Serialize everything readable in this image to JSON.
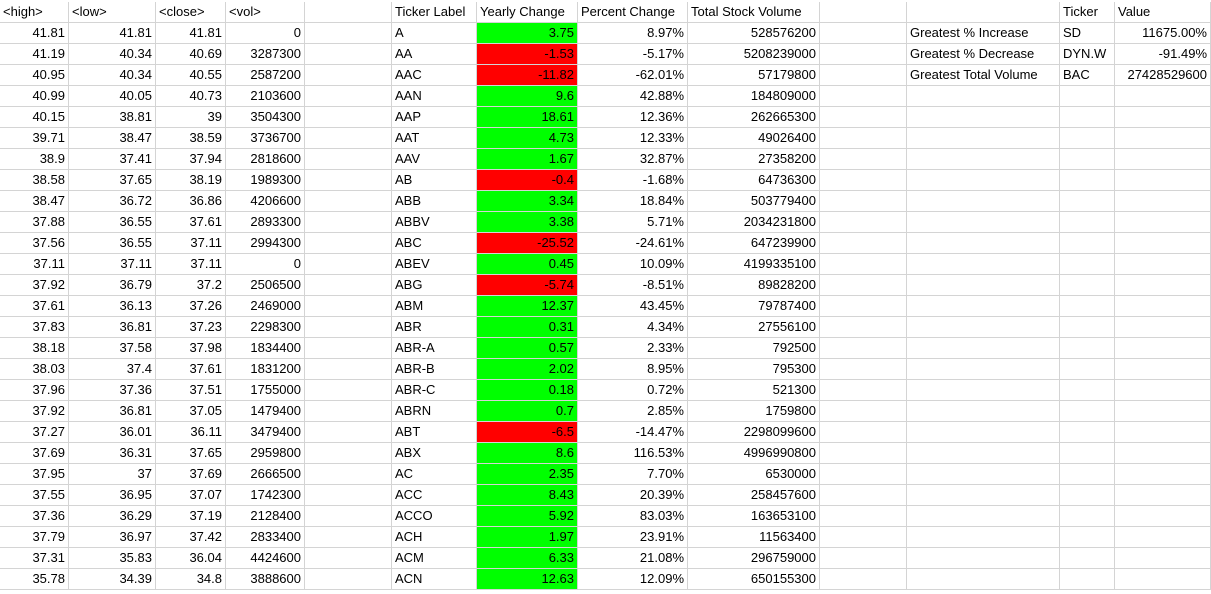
{
  "sheet": {
    "headers": {
      "high": "<high>",
      "low": "<low>",
      "close": "<close>",
      "vol": "<vol>",
      "ticker_label": "Ticker Label",
      "yearly_change": "Yearly Change",
      "percent_change": "Percent Change",
      "total_stock_volume": "Total Stock Volume",
      "summary_ticker": "Ticker",
      "summary_value": "Value"
    },
    "rows": [
      {
        "high": "41.81",
        "low": "41.81",
        "close": "41.81",
        "vol": "0",
        "ticker": "A",
        "yearly_change": "3.75",
        "percent_change": "8.97%",
        "total_volume": "528576200",
        "change_color": "#00ff00"
      },
      {
        "high": "41.19",
        "low": "40.34",
        "close": "40.69",
        "vol": "3287300",
        "ticker": "AA",
        "yearly_change": "-1.53",
        "percent_change": "-5.17%",
        "total_volume": "5208239000",
        "change_color": "#ff0000"
      },
      {
        "high": "40.95",
        "low": "40.34",
        "close": "40.55",
        "vol": "2587200",
        "ticker": "AAC",
        "yearly_change": "-11.82",
        "percent_change": "-62.01%",
        "total_volume": "57179800",
        "change_color": "#ff0000"
      },
      {
        "high": "40.99",
        "low": "40.05",
        "close": "40.73",
        "vol": "2103600",
        "ticker": "AAN",
        "yearly_change": "9.6",
        "percent_change": "42.88%",
        "total_volume": "184809000",
        "change_color": "#00ff00"
      },
      {
        "high": "40.15",
        "low": "38.81",
        "close": "39",
        "vol": "3504300",
        "ticker": "AAP",
        "yearly_change": "18.61",
        "percent_change": "12.36%",
        "total_volume": "262665300",
        "change_color": "#00ff00"
      },
      {
        "high": "39.71",
        "low": "38.47",
        "close": "38.59",
        "vol": "3736700",
        "ticker": "AAT",
        "yearly_change": "4.73",
        "percent_change": "12.33%",
        "total_volume": "49026400",
        "change_color": "#00ff00"
      },
      {
        "high": "38.9",
        "low": "37.41",
        "close": "37.94",
        "vol": "2818600",
        "ticker": "AAV",
        "yearly_change": "1.67",
        "percent_change": "32.87%",
        "total_volume": "27358200",
        "change_color": "#00ff00"
      },
      {
        "high": "38.58",
        "low": "37.65",
        "close": "38.19",
        "vol": "1989300",
        "ticker": "AB",
        "yearly_change": "-0.4",
        "percent_change": "-1.68%",
        "total_volume": "64736300",
        "change_color": "#ff0000"
      },
      {
        "high": "38.47",
        "low": "36.72",
        "close": "36.86",
        "vol": "4206600",
        "ticker": "ABB",
        "yearly_change": "3.34",
        "percent_change": "18.84%",
        "total_volume": "503779400",
        "change_color": "#00ff00"
      },
      {
        "high": "37.88",
        "low": "36.55",
        "close": "37.61",
        "vol": "2893300",
        "ticker": "ABBV",
        "yearly_change": "3.38",
        "percent_change": "5.71%",
        "total_volume": "2034231800",
        "change_color": "#00ff00"
      },
      {
        "high": "37.56",
        "low": "36.55",
        "close": "37.11",
        "vol": "2994300",
        "ticker": "ABC",
        "yearly_change": "-25.52",
        "percent_change": "-24.61%",
        "total_volume": "647239900",
        "change_color": "#ff0000"
      },
      {
        "high": "37.11",
        "low": "37.11",
        "close": "37.11",
        "vol": "0",
        "ticker": "ABEV",
        "yearly_change": "0.45",
        "percent_change": "10.09%",
        "total_volume": "4199335100",
        "change_color": "#00ff00"
      },
      {
        "high": "37.92",
        "low": "36.79",
        "close": "37.2",
        "vol": "2506500",
        "ticker": "ABG",
        "yearly_change": "-5.74",
        "percent_change": "-8.51%",
        "total_volume": "89828200",
        "change_color": "#ff0000"
      },
      {
        "high": "37.61",
        "low": "36.13",
        "close": "37.26",
        "vol": "2469000",
        "ticker": "ABM",
        "yearly_change": "12.37",
        "percent_change": "43.45%",
        "total_volume": "79787400",
        "change_color": "#00ff00"
      },
      {
        "high": "37.83",
        "low": "36.81",
        "close": "37.23",
        "vol": "2298300",
        "ticker": "ABR",
        "yearly_change": "0.31",
        "percent_change": "4.34%",
        "total_volume": "27556100",
        "change_color": "#00ff00"
      },
      {
        "high": "38.18",
        "low": "37.58",
        "close": "37.98",
        "vol": "1834400",
        "ticker": "ABR-A",
        "yearly_change": "0.57",
        "percent_change": "2.33%",
        "total_volume": "792500",
        "change_color": "#00ff00"
      },
      {
        "high": "38.03",
        "low": "37.4",
        "close": "37.61",
        "vol": "1831200",
        "ticker": "ABR-B",
        "yearly_change": "2.02",
        "percent_change": "8.95%",
        "total_volume": "795300",
        "change_color": "#00ff00"
      },
      {
        "high": "37.96",
        "low": "37.36",
        "close": "37.51",
        "vol": "1755000",
        "ticker": "ABR-C",
        "yearly_change": "0.18",
        "percent_change": "0.72%",
        "total_volume": "521300",
        "change_color": "#00ff00"
      },
      {
        "high": "37.92",
        "low": "36.81",
        "close": "37.05",
        "vol": "1479400",
        "ticker": "ABRN",
        "yearly_change": "0.7",
        "percent_change": "2.85%",
        "total_volume": "1759800",
        "change_color": "#00ff00"
      },
      {
        "high": "37.27",
        "low": "36.01",
        "close": "36.11",
        "vol": "3479400",
        "ticker": "ABT",
        "yearly_change": "-6.5",
        "percent_change": "-14.47%",
        "total_volume": "2298099600",
        "change_color": "#ff0000"
      },
      {
        "high": "37.69",
        "low": "36.31",
        "close": "37.65",
        "vol": "2959800",
        "ticker": "ABX",
        "yearly_change": "8.6",
        "percent_change": "116.53%",
        "total_volume": "4996990800",
        "change_color": "#00ff00"
      },
      {
        "high": "37.95",
        "low": "37",
        "close": "37.69",
        "vol": "2666500",
        "ticker": "AC",
        "yearly_change": "2.35",
        "percent_change": "7.70%",
        "total_volume": "6530000",
        "change_color": "#00ff00"
      },
      {
        "high": "37.55",
        "low": "36.95",
        "close": "37.07",
        "vol": "1742300",
        "ticker": "ACC",
        "yearly_change": "8.43",
        "percent_change": "20.39%",
        "total_volume": "258457600",
        "change_color": "#00ff00"
      },
      {
        "high": "37.36",
        "low": "36.29",
        "close": "37.19",
        "vol": "2128400",
        "ticker": "ACCO",
        "yearly_change": "5.92",
        "percent_change": "83.03%",
        "total_volume": "163653100",
        "change_color": "#00ff00"
      },
      {
        "high": "37.79",
        "low": "36.97",
        "close": "37.42",
        "vol": "2833400",
        "ticker": "ACH",
        "yearly_change": "1.97",
        "percent_change": "23.91%",
        "total_volume": "11563400",
        "change_color": "#00ff00"
      },
      {
        "high": "37.31",
        "low": "35.83",
        "close": "36.04",
        "vol": "4424600",
        "ticker": "ACM",
        "yearly_change": "6.33",
        "percent_change": "21.08%",
        "total_volume": "296759000",
        "change_color": "#00ff00"
      },
      {
        "high": "35.78",
        "low": "34.39",
        "close": "34.8",
        "vol": "3888600",
        "ticker": "ACN",
        "yearly_change": "12.63",
        "percent_change": "12.09%",
        "total_volume": "650155300",
        "change_color": "#00ff00"
      }
    ],
    "summary": [
      {
        "label": "Greatest % Increase",
        "ticker": "SD",
        "value": "11675.00%"
      },
      {
        "label": "Greatest % Decrease",
        "ticker": "DYN.W",
        "value": "-91.49%"
      },
      {
        "label": "Greatest Total Volume",
        "ticker": "BAC",
        "value": "27428529600"
      }
    ]
  }
}
